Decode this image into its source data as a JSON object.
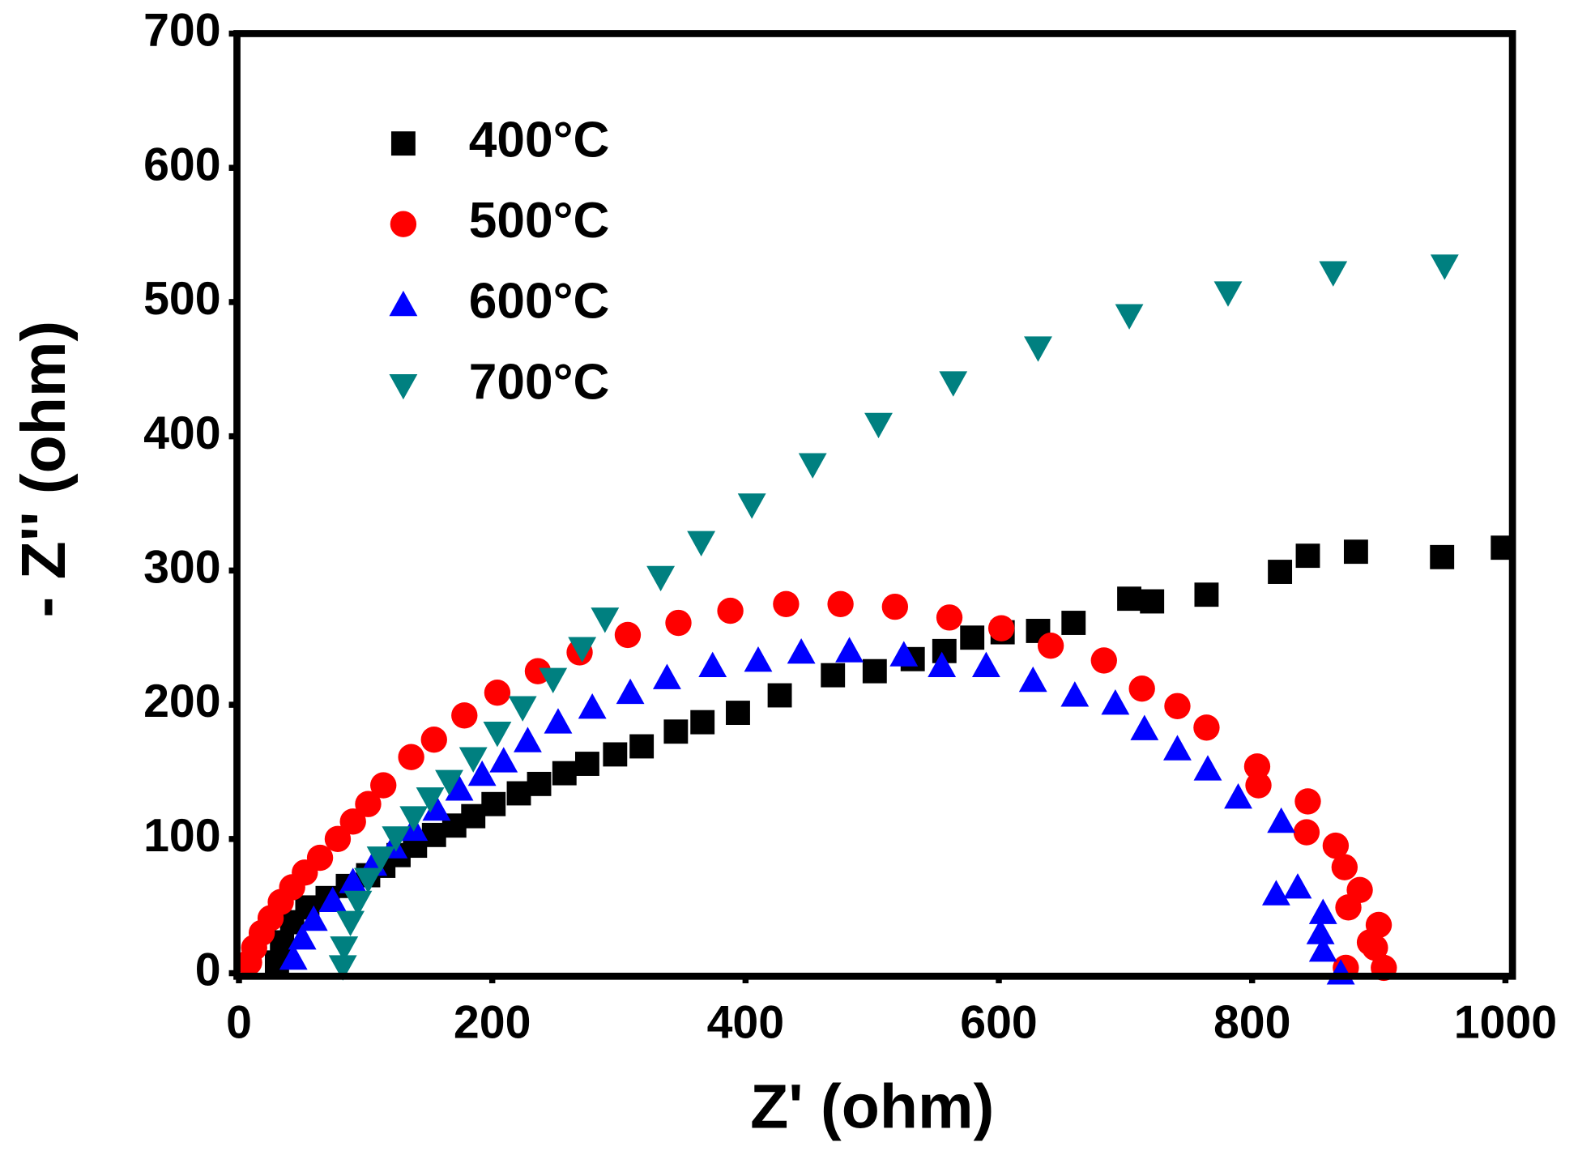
{
  "chart_data": {
    "type": "scatter",
    "xlabel": "Z' (ohm)",
    "ylabel": "- Z'' (ohm)",
    "xlim": [
      0,
      1000
    ],
    "ylim": [
      0,
      700
    ],
    "xticks": [
      0,
      200,
      400,
      600,
      800,
      1000
    ],
    "yticks": [
      0,
      100,
      200,
      300,
      400,
      500,
      600,
      700
    ],
    "grid": false,
    "legend": "upper left",
    "series": [
      {
        "name": "400°C",
        "color": "#000000",
        "marker": "square",
        "x": [
          998,
          950,
          882,
          844,
          822,
          764,
          721,
          703,
          659,
          631,
          603,
          579,
          557,
          532,
          502,
          469,
          427,
          394,
          366,
          345,
          318,
          297,
          275,
          257,
          237,
          221,
          201,
          185,
          170,
          154,
          139,
          126,
          114,
          102,
          86,
          70,
          54,
          42,
          34,
          30
        ],
        "values": [
          317,
          310,
          314,
          311,
          299,
          282,
          277,
          279,
          261,
          255,
          254,
          250,
          240,
          234,
          225,
          222,
          207,
          194,
          187,
          180,
          169,
          163,
          156,
          149,
          141,
          134,
          126,
          117,
          110,
          103,
          95,
          88,
          80,
          73,
          65,
          56,
          49,
          38,
          23,
          8
        ]
      },
      {
        "name": "500°C",
        "color": "#ff0000",
        "marker": "circle",
        "x": [
          904,
          897,
          900,
          893,
          885,
          876,
          873,
          866,
          844,
          843,
          874,
          804,
          805,
          764,
          741,
          713,
          683,
          641,
          602,
          561,
          518,
          475,
          432,
          388,
          347,
          307,
          269,
          236,
          204,
          178,
          154,
          136,
          114,
          102,
          90,
          78,
          64,
          52,
          42,
          33,
          25,
          18,
          12,
          8
        ],
        "values": [
          4,
          19,
          36,
          23,
          62,
          49,
          79,
          95,
          128,
          105,
          4,
          154,
          140,
          183,
          199,
          212,
          233,
          244,
          257,
          265,
          273,
          275,
          275,
          270,
          261,
          252,
          239,
          225,
          209,
          192,
          174,
          161,
          140,
          126,
          113,
          100,
          86,
          75,
          64,
          53,
          41,
          30,
          19,
          8
        ]
      },
      {
        "name": "600°C",
        "color": "#0000ff",
        "marker": "triangle-up",
        "x": [
          870,
          856,
          854,
          856,
          836,
          819,
          823,
          789,
          765,
          741,
          715,
          692,
          660,
          627,
          590,
          555,
          525,
          482,
          444,
          410,
          374,
          338,
          309,
          279,
          252,
          228,
          209,
          192,
          174,
          156,
          138,
          122,
          106,
          90,
          74,
          59,
          50,
          43
        ],
        "values": [
          0,
          17,
          30,
          45,
          64,
          59,
          113,
          131,
          152,
          167,
          182,
          201,
          207,
          218,
          229,
          229,
          237,
          240,
          239,
          233,
          229,
          220,
          209,
          198,
          187,
          173,
          158,
          148,
          137,
          122,
          107,
          94,
          81,
          68,
          54,
          40,
          26,
          11
        ]
      },
      {
        "name": "700°C",
        "color": "#008080",
        "marker": "triangle-down",
        "x": [
          952,
          864,
          781,
          703,
          631,
          564,
          505,
          453,
          405,
          365,
          333,
          289,
          271,
          248,
          224,
          204,
          185,
          166,
          151,
          138,
          124,
          112,
          102,
          94,
          88,
          83,
          82
        ],
        "values": [
          527,
          522,
          507,
          490,
          466,
          440,
          409,
          379,
          349,
          321,
          295,
          264,
          242,
          219,
          198,
          179,
          160,
          143,
          130,
          116,
          101,
          86,
          70,
          53,
          38,
          19,
          5
        ]
      }
    ]
  }
}
